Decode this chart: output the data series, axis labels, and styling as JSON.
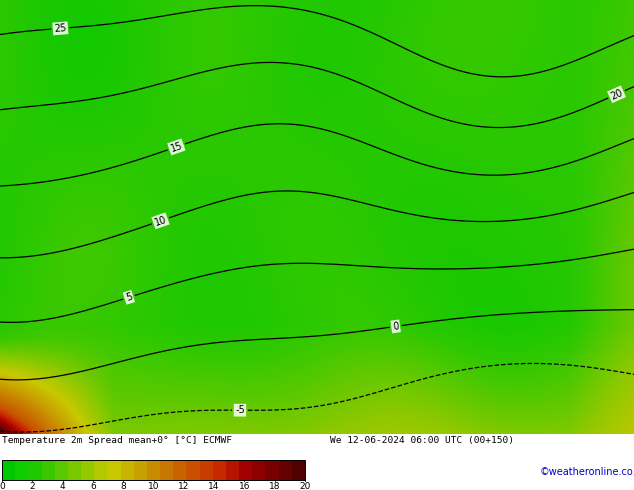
{
  "title_line1": "Temperature 2m Spread mean+0° [°C] ECMWF",
  "title_line2": "We 12-06-2024 06:00 UTC (00+150)",
  "colorbar_ticks": [
    0,
    2,
    4,
    6,
    8,
    10,
    12,
    14,
    16,
    18,
    20
  ],
  "colormap_nodes": [
    [
      0.0,
      "#00c800"
    ],
    [
      0.1,
      "#10c800"
    ],
    [
      0.2,
      "#30c800"
    ],
    [
      0.3,
      "#60c800"
    ],
    [
      0.4,
      "#96c800"
    ],
    [
      0.5,
      "#c8c800"
    ],
    [
      0.6,
      "#c8a000"
    ],
    [
      0.7,
      "#c87800"
    ],
    [
      0.8,
      "#c85000"
    ],
    [
      0.85,
      "#c82000"
    ],
    [
      0.9,
      "#a00000"
    ],
    [
      0.95,
      "#780000"
    ],
    [
      1.0,
      "#500000"
    ]
  ],
  "contour_levels": [
    -5,
    0,
    5,
    10,
    15,
    20,
    25
  ],
  "contour_color": "black",
  "contour_linewidth": 0.9,
  "copyright_color": "#0000cc",
  "vmin": 0,
  "vmax": 20,
  "fig_width": 6.34,
  "fig_height": 4.9,
  "dpi": 100
}
